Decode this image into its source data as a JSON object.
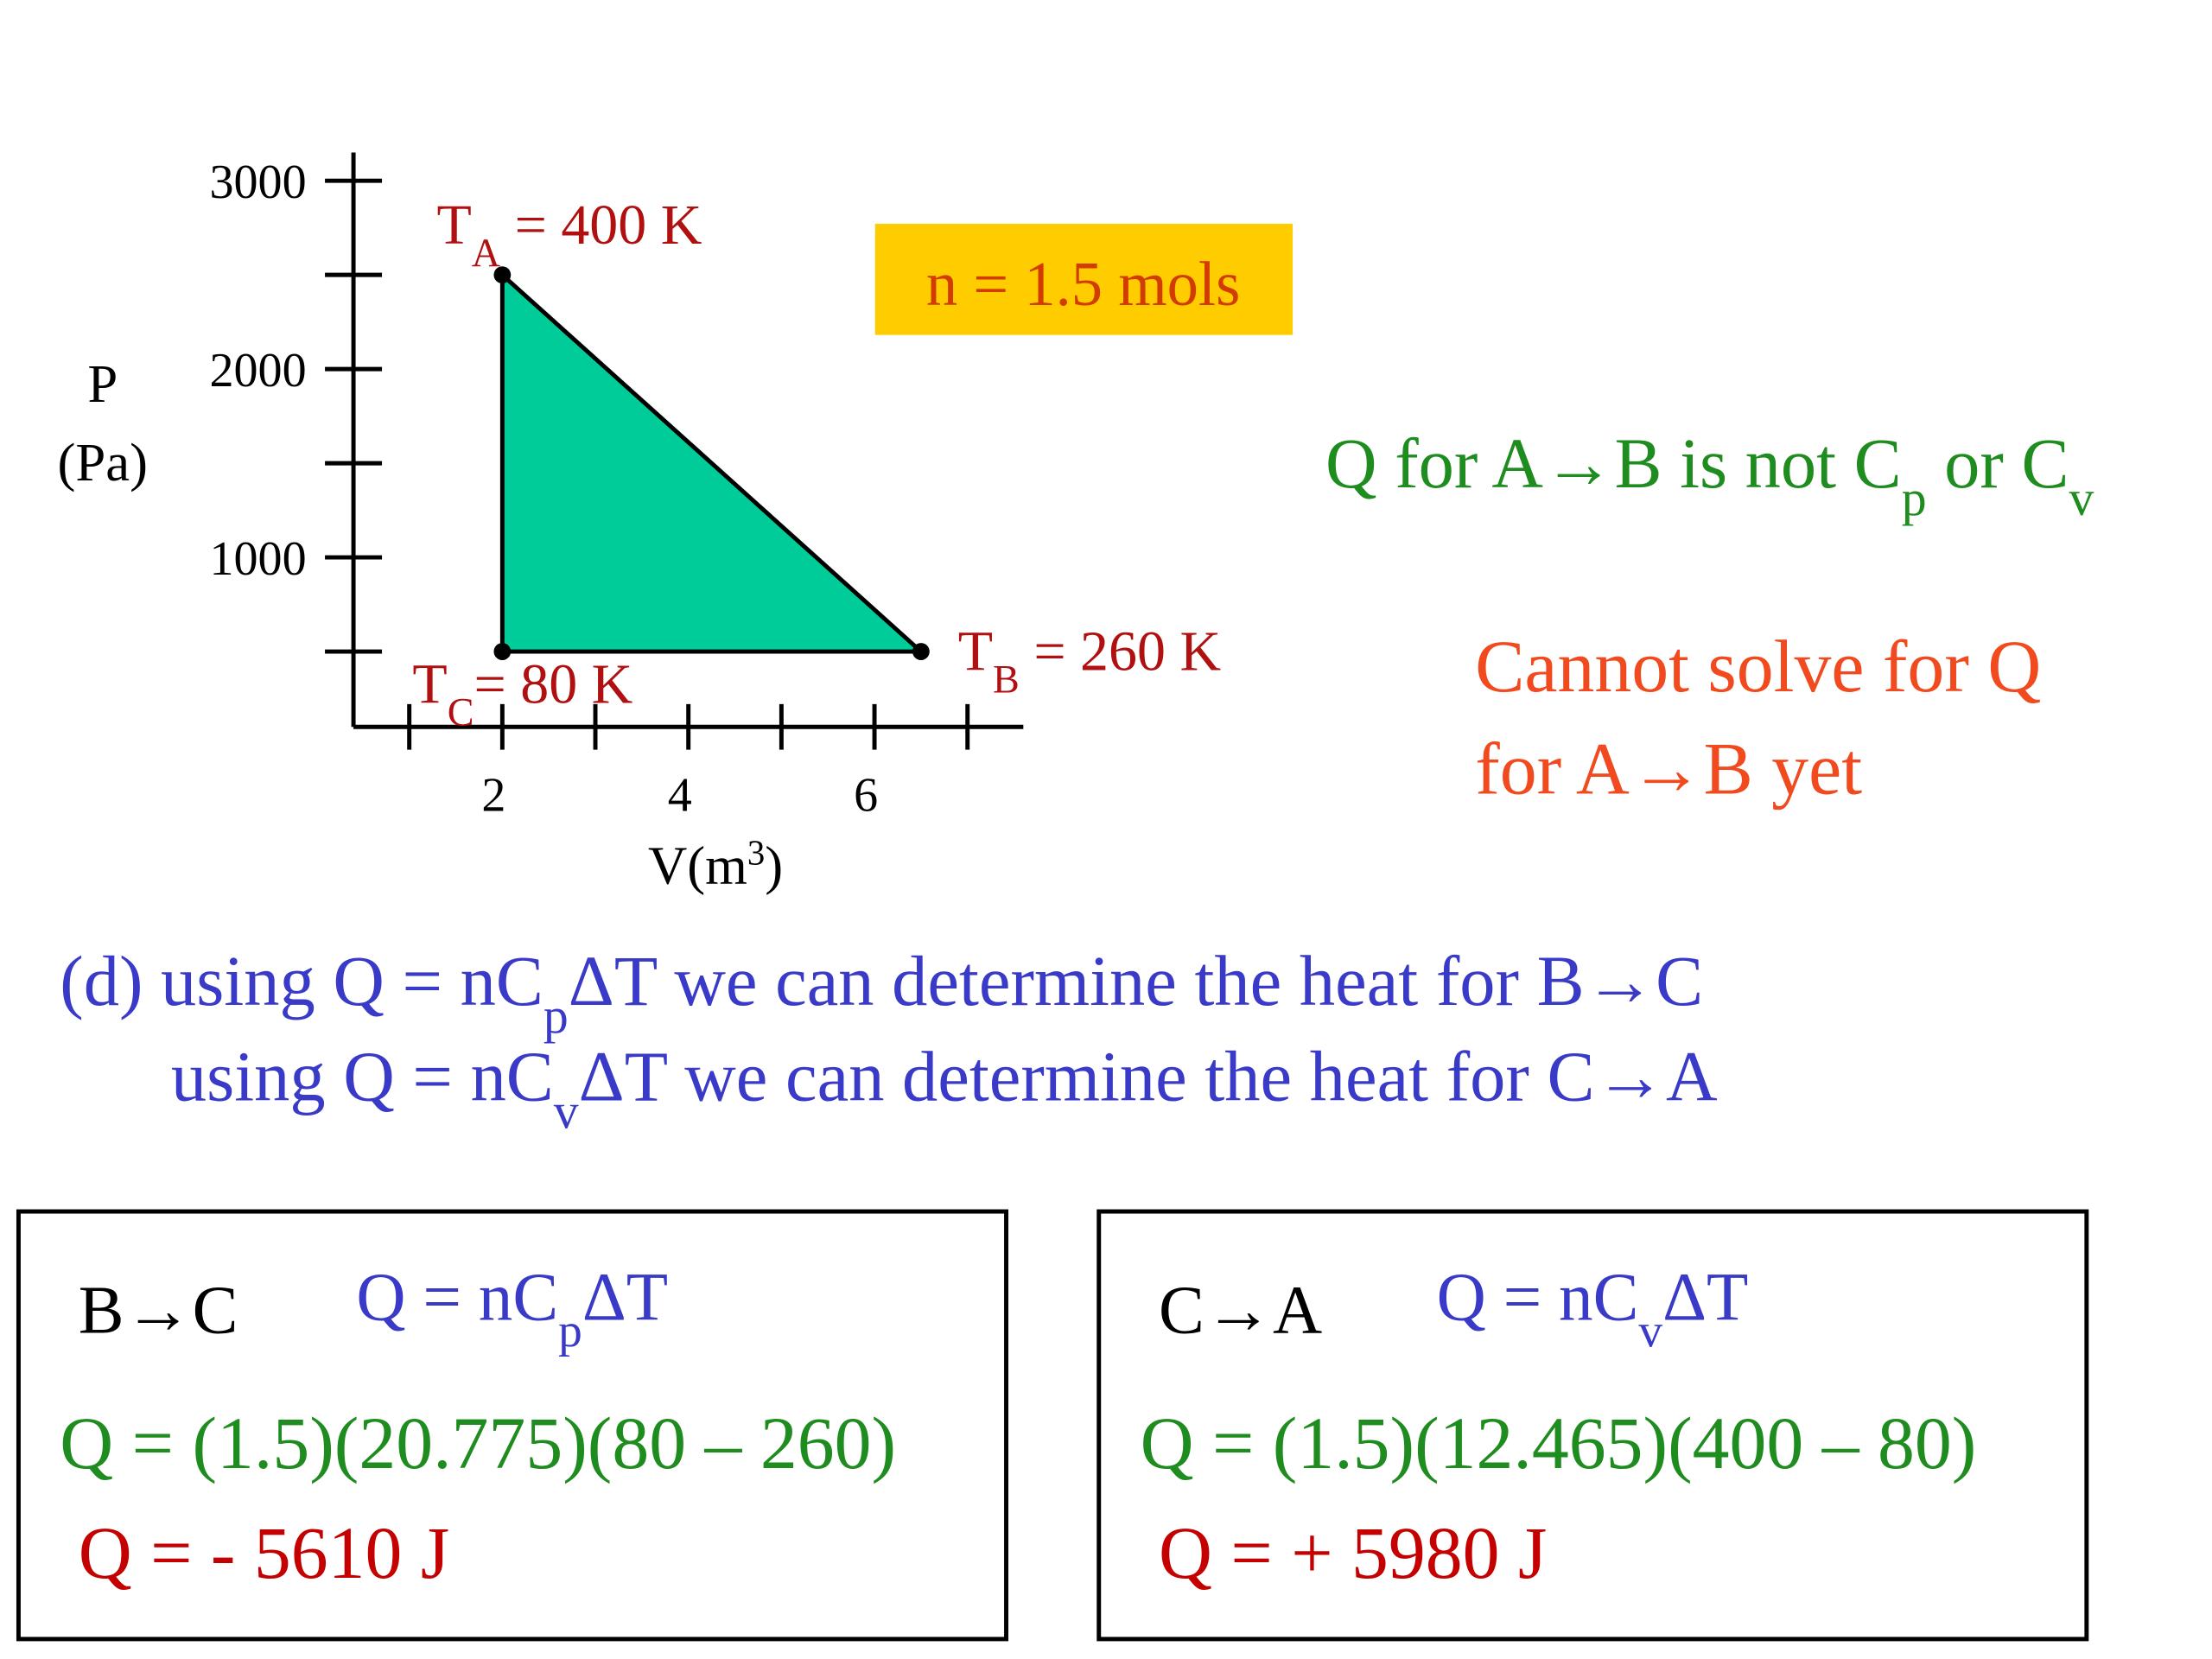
{
  "chart_data": {
    "type": "polygon",
    "points": [
      {
        "x": 2,
        "y": 2500,
        "label": [
          {
            "t": "T"
          },
          {
            "sub": "A"
          },
          {
            "t": " = 400 K"
          }
        ]
      },
      {
        "x": 6.5,
        "y": 500,
        "label": [
          {
            "t": "T"
          },
          {
            "sub": "B"
          },
          {
            "t": " = 260 K"
          }
        ]
      },
      {
        "x": 2,
        "y": 500,
        "label": [
          {
            "t": "T"
          },
          {
            "sub": "C"
          },
          {
            "t": "= 80 K"
          }
        ]
      }
    ],
    "fill": "#00cc99",
    "xlim": [
      0.4,
      7.6
    ],
    "ylim": [
      100,
      3150
    ],
    "xticks": [
      2,
      4,
      6
    ],
    "x_minor_ticks": [
      1,
      3,
      5,
      7
    ],
    "yticks": [
      1000,
      2000,
      3000
    ],
    "y_minor_ticks": [
      500,
      1500,
      2500
    ],
    "y_label": [
      "P",
      "(Pa)"
    ],
    "x_label": [
      {
        "t": "V(m"
      },
      {
        "sup": "3"
      },
      {
        "t": ")"
      }
    ]
  },
  "notes": {
    "n_box": "n = 1.5 mols",
    "not_cp_cv": [
      {
        "t": "Q for A→B is not C"
      },
      {
        "sub": "p"
      },
      {
        "t": " or C"
      },
      {
        "sub": "v"
      }
    ],
    "cannot_solve": [
      "Cannot solve for Q",
      "for A→B yet"
    ],
    "part_d": [
      [
        {
          "t": "(d) using Q = nC"
        },
        {
          "sub": "p"
        },
        {
          "t": "ΔT we can determine the heat for B→C"
        }
      ],
      [
        {
          "t": "using Q = nC"
        },
        {
          "sub": "v"
        },
        {
          "t": "ΔT we can determine the heat for C→A"
        }
      ]
    ]
  },
  "boxes": [
    {
      "process": "B→C",
      "formula": [
        {
          "t": "Q = nC"
        },
        {
          "sub": "p"
        },
        {
          "t": "ΔT"
        }
      ],
      "calculation": "Q = (1.5)(20.775)(80 – 260)",
      "result": "Q = - 5610 J"
    },
    {
      "process": "C→A",
      "formula": [
        {
          "t": "Q = nC"
        },
        {
          "sub": "v"
        },
        {
          "t": "ΔT"
        }
      ],
      "calculation": "Q = (1.5)(12.465)(400 – 80)",
      "result": "Q = + 5980 J"
    }
  ]
}
